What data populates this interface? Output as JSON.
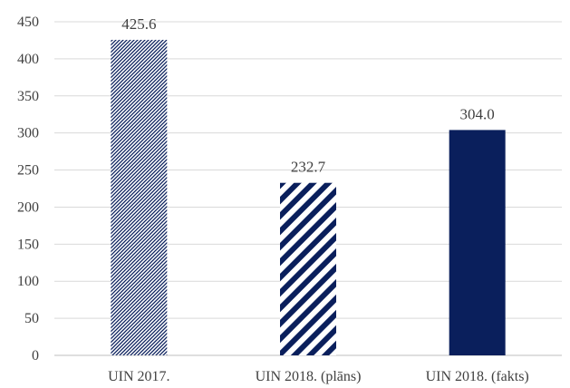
{
  "chart_data": {
    "type": "bar",
    "categories": [
      "UIN 2017.",
      "UIN 2018. (plāns)",
      "UIN 2018. (fakts)"
    ],
    "values": [
      425.6,
      232.7,
      304.0
    ],
    "data_labels": [
      "425.6",
      "232.7",
      "304.0"
    ],
    "bar_styles": [
      "fine-diagonal-hatch",
      "wide-diagonal-hatch",
      "solid"
    ],
    "bar_color": "#0a1f5c",
    "ylim": [
      0,
      450
    ],
    "y_ticks": [
      0,
      50,
      100,
      150,
      200,
      250,
      300,
      350,
      400,
      450
    ],
    "grid": true,
    "legend": false,
    "title": "",
    "xlabel": "",
    "ylabel": ""
  }
}
